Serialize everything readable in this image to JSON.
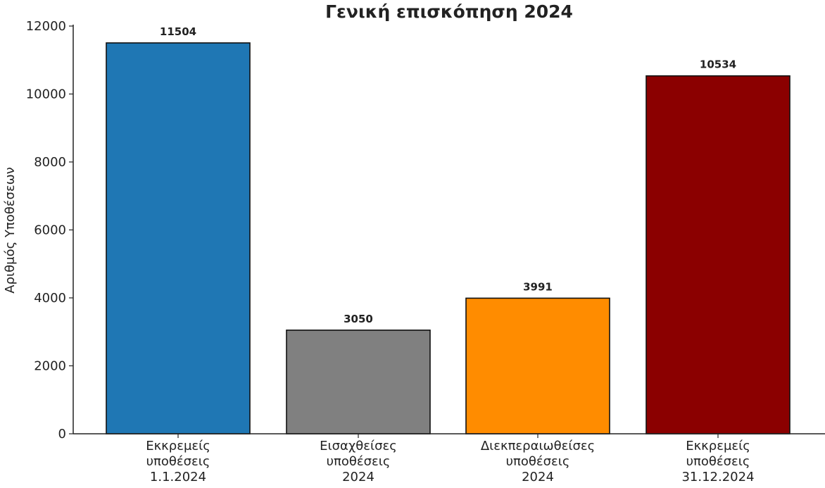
{
  "chart_data": {
    "type": "bar",
    "title": "Γενική επισκόπηση 2024",
    "xlabel": "",
    "ylabel": "Αριθμός Υποθέσεων",
    "ylim": [
      0,
      12000
    ],
    "yticks": [
      0,
      2000,
      4000,
      6000,
      8000,
      10000,
      12000
    ],
    "grid": false,
    "legend": "none",
    "categories": [
      [
        "Εκκρεμείς",
        "υποθέσεις",
        "1.1.2024"
      ],
      [
        "Εισαχθείσες",
        "υποθέσεις",
        "2024"
      ],
      [
        "Διεκπεραιωθείσες",
        "υποθέσεις",
        "2024"
      ],
      [
        "Εκκρεμείς",
        "υποθέσεις",
        "31.12.2024"
      ]
    ],
    "values": [
      11504,
      3050,
      3991,
      10534
    ],
    "value_labels": [
      "11504",
      "3050",
      "3991",
      "10534"
    ],
    "colors": [
      "#1f77b4",
      "#808080",
      "#ff8c00",
      "#8b0000"
    ]
  }
}
